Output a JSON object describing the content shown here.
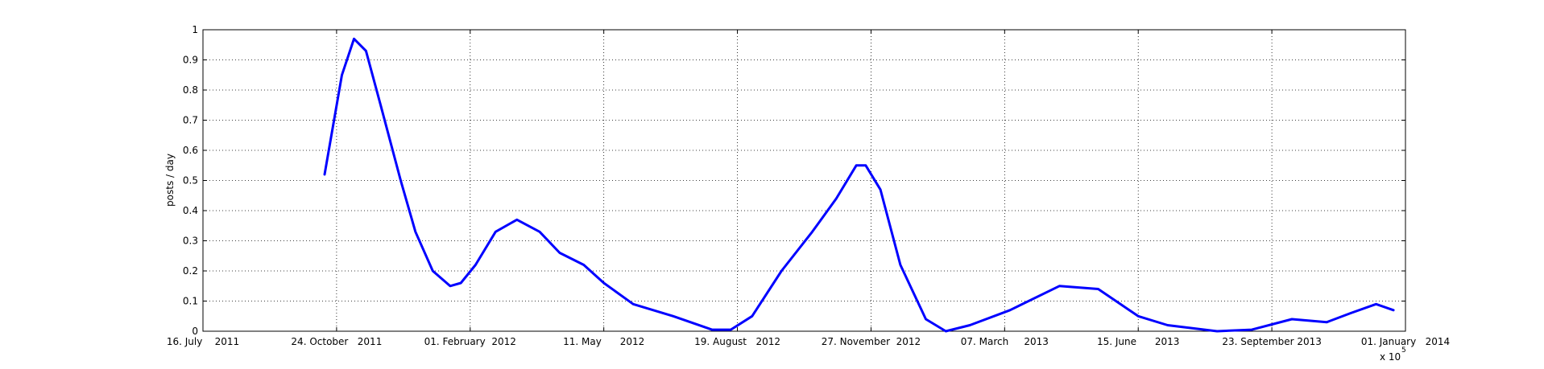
{
  "chart_data": {
    "type": "line",
    "y_label": "posts / day",
    "x_multiplier": "x 10",
    "x_exponent": "5",
    "xlim": [
      734700,
      735600
    ],
    "xticks": [
      {
        "value": 734700,
        "label": "16. July    2011"
      },
      {
        "value": 734800,
        "label": "24. October   2011"
      },
      {
        "value": 734900,
        "label": "01. February  2012"
      },
      {
        "value": 735000,
        "label": "11. May      2012"
      },
      {
        "value": 735100,
        "label": "19. August   2012"
      },
      {
        "value": 735200,
        "label": "27. November  2012"
      },
      {
        "value": 735300,
        "label": "07. March     2013"
      },
      {
        "value": 735400,
        "label": "15. June      2013"
      },
      {
        "value": 735500,
        "label": "23. September 2013"
      },
      {
        "value": 735600,
        "label": "01. January   2014"
      }
    ],
    "ylim": [
      0,
      1
    ],
    "yticks": [
      0,
      0.1,
      0.2,
      0.3,
      0.4,
      0.5,
      0.6,
      0.7,
      0.8,
      0.9,
      1
    ],
    "grid": true,
    "series": [
      {
        "color": "#0000ff",
        "x": [
          734791,
          734804,
          734813,
          734822,
          734833,
          734848,
          734859,
          734872,
          734885,
          734893,
          734904,
          734919,
          734935,
          734952,
          734967,
          734985,
          735000,
          735022,
          735052,
          735081,
          735095,
          735111,
          735133,
          735156,
          735174,
          735189,
          735196,
          735207,
          735222,
          735241,
          735256,
          735274,
          735304,
          735341,
          735370,
          735400,
          735422,
          735459,
          735485,
          735515,
          735541,
          735559,
          735578,
          735591
        ],
        "values": [
          0.52,
          0.85,
          0.97,
          0.93,
          0.75,
          0.5,
          0.33,
          0.2,
          0.15,
          0.16,
          0.22,
          0.33,
          0.37,
          0.33,
          0.26,
          0.22,
          0.16,
          0.09,
          0.05,
          0.005,
          0.005,
          0.05,
          0.2,
          0.33,
          0.44,
          0.55,
          0.55,
          0.47,
          0.22,
          0.04,
          0.0,
          0.02,
          0.07,
          0.15,
          0.14,
          0.05,
          0.02,
          0.0,
          0.005,
          0.04,
          0.03,
          0.06,
          0.09,
          0.07
        ]
      }
    ]
  }
}
